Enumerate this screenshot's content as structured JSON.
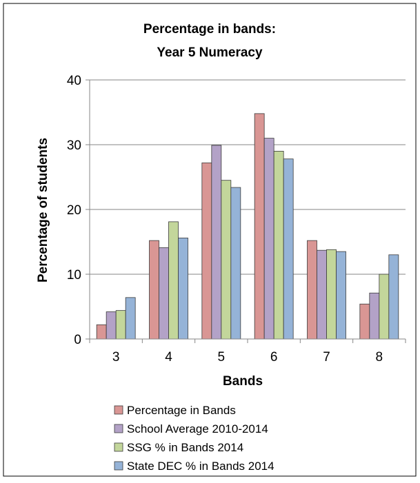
{
  "chart_data": {
    "type": "bar",
    "title_lines": [
      "Percentage in bands:",
      "Year 5 Numeracy"
    ],
    "xlabel": "Bands",
    "ylabel": "Percentage of students",
    "categories": [
      "3",
      "4",
      "5",
      "6",
      "7",
      "8"
    ],
    "ylim": [
      0,
      40
    ],
    "yticks": [
      0,
      10,
      20,
      30,
      40
    ],
    "grid": true,
    "legend_position": "bottom",
    "series": [
      {
        "name": "Percentage in Bands",
        "color": "#d99694",
        "values": [
          2.2,
          15.2,
          27.2,
          34.8,
          15.2,
          5.4
        ]
      },
      {
        "name": "School Average 2010-2014",
        "color": "#b3a2c7",
        "values": [
          4.2,
          14.1,
          29.9,
          31.0,
          13.7,
          7.1
        ]
      },
      {
        "name": "SSG % in Bands 2014",
        "color": "#c3d69b",
        "values": [
          4.4,
          18.1,
          24.5,
          29.0,
          13.8,
          10.0
        ]
      },
      {
        "name": "State DEC % in Bands 2014",
        "color": "#95b3d7",
        "values": [
          6.4,
          15.6,
          23.4,
          27.8,
          13.5,
          13.0
        ]
      }
    ]
  }
}
